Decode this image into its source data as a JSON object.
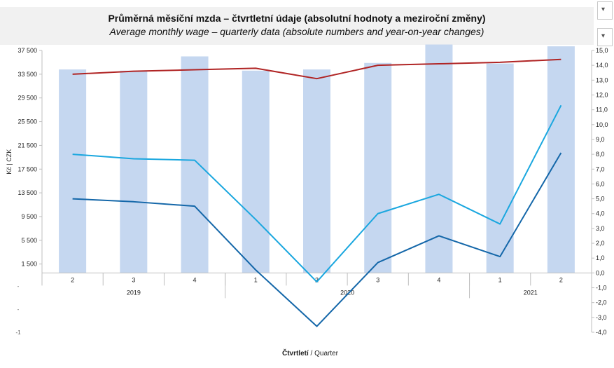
{
  "header": {
    "title_cz": "Průměrná měsíční mzda – čtvrtletní údaje (absolutní hodnoty a meziroční změny)",
    "title_en": "Average monthly wage – quarterly data (absolute numbers and year-on-year changes)"
  },
  "side_buttons": [
    {
      "icon": "filter-icon",
      "glyph": "▾"
    },
    {
      "icon": "chevron-down-icon",
      "glyph": "▾"
    }
  ],
  "chart_data": {
    "type": "bar",
    "categories": [
      "2",
      "3",
      "4",
      "1",
      "2",
      "3",
      "4",
      "1",
      "2"
    ],
    "year_groups": [
      {
        "label": "2019",
        "start": 0,
        "end": 2
      },
      {
        "label": "2020",
        "start": 3,
        "end": 6
      },
      {
        "label": "2021",
        "start": 7,
        "end": 8
      }
    ],
    "ylabel": "Kč | CZK",
    "xlabel": "Čtvrtletí / Quarter",
    "xlabel_bold_part": "Čtvrtletí",
    "xlabel_rest": " / Quarter",
    "ylim": [
      -4000,
      37500
    ],
    "yticks": [
      "37 500",
      "33 500",
      "29 500",
      "25 500",
      "21 500",
      "17 500",
      "13 500",
      "9 500",
      "5 500",
      "1 500"
    ],
    "ytick_values": [
      37500,
      33500,
      29500,
      25500,
      21500,
      17500,
      13500,
      9500,
      5500,
      1500
    ],
    "left_extra_labels": [
      "-",
      "-",
      "-1"
    ],
    "y2lim": [
      -4.0,
      15.0
    ],
    "y2ticks": [
      "15,0",
      "14,0",
      "13,0",
      "12,0",
      "11,0",
      "10,0",
      "9,0",
      "8,0",
      "7,0",
      "6,0",
      "5,0",
      "4,0",
      "3,0",
      "2,0",
      "1,0",
      "0,0",
      "-1,0",
      "-2,0",
      "-3,0",
      "-4,0"
    ],
    "y2tick_values": [
      15,
      14,
      13,
      12,
      11,
      10,
      9,
      8,
      7,
      6,
      5,
      4,
      3,
      2,
      1,
      0,
      -1,
      -2,
      -3,
      -4
    ],
    "bars": {
      "axis": "left",
      "color": "#c5d7f0",
      "values": [
        34300,
        34100,
        36500,
        34100,
        34300,
        35400,
        38500,
        35300,
        38200
      ]
    },
    "series": [
      {
        "axis": "right",
        "color": "#b02424",
        "values": [
          13.4,
          13.6,
          13.7,
          13.8,
          13.1,
          14.0,
          14.1,
          14.2,
          14.4
        ]
      },
      {
        "axis": "right",
        "color": "#1aa7df",
        "values": [
          8.0,
          7.7,
          7.6,
          3.6,
          -0.6,
          4.0,
          5.3,
          3.3,
          11.3
        ]
      },
      {
        "axis": "right",
        "color": "#1467a9",
        "values": [
          5.0,
          4.8,
          4.5,
          0.2,
          -3.6,
          0.7,
          2.5,
          1.1,
          8.1
        ]
      }
    ]
  }
}
